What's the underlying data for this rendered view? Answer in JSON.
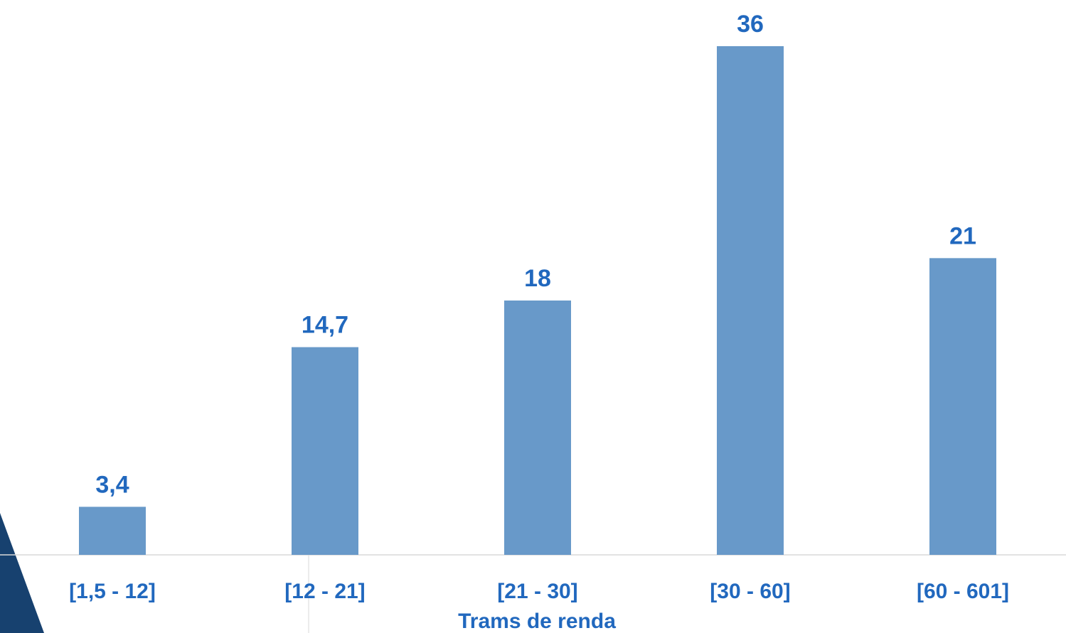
{
  "colors": {
    "bar": "#6899C9",
    "label": "#2168BE",
    "axis_line": "#D9D9D9",
    "corner_shape": "#17416F"
  },
  "chart_data": {
    "type": "bar",
    "categories": [
      "[1,5 - 12]",
      "[12 - 21]",
      "[21 - 30]",
      "[30 - 60]",
      "[60 - 601]"
    ],
    "values": [
      3.4,
      14.7,
      18,
      36,
      21
    ],
    "value_labels": [
      "3,4",
      "14,7",
      "18",
      "36",
      "21"
    ],
    "title": "",
    "xlabel": "Trams de renda",
    "ylabel": "",
    "ylim": [
      0,
      36
    ],
    "grid": false,
    "legend": "none"
  }
}
